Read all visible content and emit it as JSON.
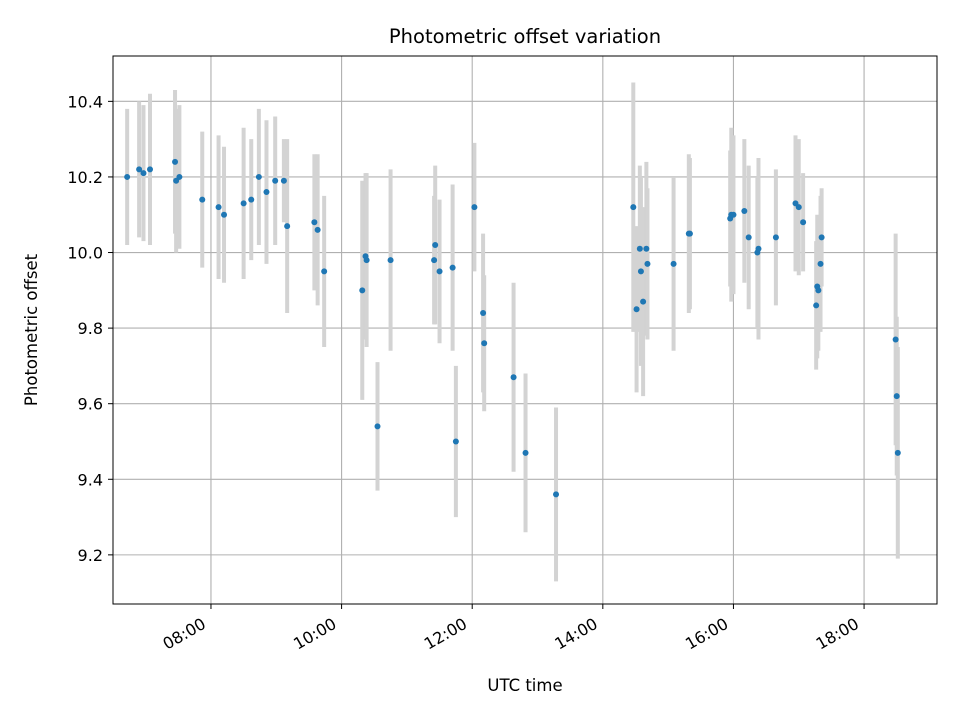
{
  "chart_data": {
    "type": "scatter",
    "title": "Photometric offset variation",
    "xlabel": "UTC time",
    "ylabel": "Photometric offset",
    "x_is_time": true,
    "xlim": [
      "06:30",
      "19:07"
    ],
    "ylim": [
      9.07,
      10.52
    ],
    "x_ticks": [
      "08:00",
      "10:00",
      "12:00",
      "14:00",
      "16:00",
      "18:00"
    ],
    "y_ticks": [
      "9.2",
      "9.4",
      "9.6",
      "9.8",
      "10.0",
      "10.2",
      "10.4"
    ],
    "grid": true,
    "point_color": "#1f77b4",
    "errorbar_color": "#d3d3d3",
    "series": [
      {
        "x": [
          "06:43",
          "06:54",
          "06:58",
          "07:04",
          "07:27",
          "07:28",
          "07:31",
          "07:52",
          "08:07",
          "08:12",
          "08:30",
          "08:37",
          "08:44",
          "08:51",
          "08:59",
          "09:07",
          "09:10",
          "09:35",
          "09:38",
          "09:44",
          "10:19",
          "10:22",
          "10:23",
          "10:33",
          "10:45",
          "11:25",
          "11:26",
          "11:30",
          "11:42",
          "11:45",
          "12:02",
          "12:10",
          "12:11",
          "12:38",
          "12:49",
          "13:17",
          "14:28",
          "14:31",
          "14:34",
          "14:35",
          "14:37",
          "14:40",
          "14:41",
          "15:05",
          "15:19",
          "15:20",
          "15:57",
          "15:58",
          "16:00",
          "16:10",
          "16:14",
          "16:22",
          "16:23",
          "16:39",
          "16:57",
          "17:00",
          "17:04",
          "17:16",
          "17:17",
          "17:18",
          "17:20",
          "17:21",
          "18:29",
          "18:30",
          "18:31"
        ],
        "y": [
          10.2,
          10.22,
          10.21,
          10.22,
          10.24,
          10.19,
          10.2,
          10.14,
          10.12,
          10.1,
          10.13,
          10.14,
          10.2,
          10.16,
          10.19,
          10.19,
          10.07,
          10.08,
          10.06,
          9.95,
          9.9,
          9.99,
          9.98,
          9.54,
          9.98,
          9.98,
          10.02,
          9.95,
          9.96,
          9.5,
          10.12,
          9.84,
          9.76,
          9.67,
          9.47,
          9.36,
          10.12,
          9.85,
          10.01,
          9.95,
          9.87,
          10.01,
          9.97,
          9.97,
          10.05,
          10.05,
          10.09,
          10.1,
          10.1,
          10.11,
          10.04,
          10.0,
          10.01,
          10.04,
          10.13,
          10.12,
          10.08,
          9.86,
          9.91,
          9.9,
          9.97,
          10.04,
          9.77,
          9.62,
          9.47
        ],
        "yerr": [
          0.18,
          0.18,
          0.18,
          0.2,
          0.19,
          0.19,
          0.19,
          0.18,
          0.19,
          0.18,
          0.2,
          0.16,
          0.18,
          0.19,
          0.17,
          0.11,
          0.23,
          0.18,
          0.2,
          0.2,
          0.29,
          0.22,
          0.23,
          0.17,
          0.24,
          0.17,
          0.21,
          0.19,
          0.22,
          0.2,
          0.17,
          0.21,
          0.18,
          0.25,
          0.21,
          0.23,
          0.33,
          0.22,
          0.22,
          0.25,
          0.25,
          0.23,
          0.2,
          0.23,
          0.21,
          0.2,
          0.18,
          0.23,
          0.21,
          0.19,
          0.19,
          0.2,
          0.24,
          0.18,
          0.18,
          0.18,
          0.13,
          0.17,
          0.19,
          0.16,
          0.18,
          0.13,
          0.28,
          0.21,
          0.28
        ]
      }
    ]
  }
}
